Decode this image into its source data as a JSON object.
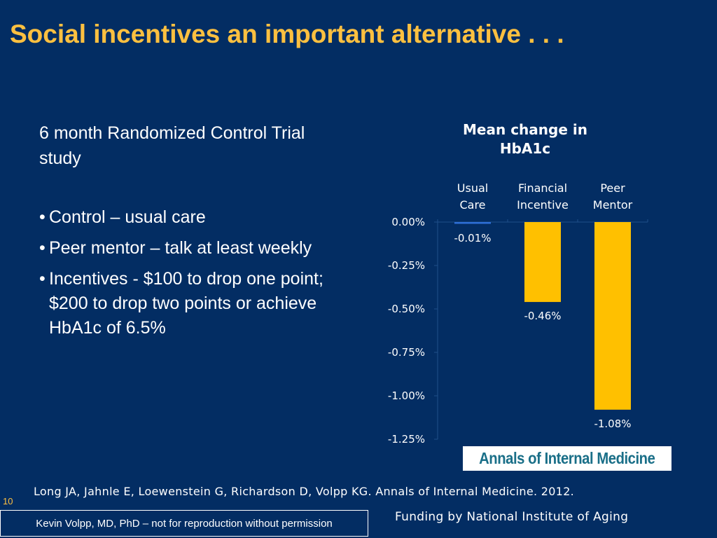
{
  "title": "Social incentives an important alternative . . .",
  "intro": "6 month Randomized Control Trial study",
  "bullets": [
    "Control – usual care",
    "Peer mentor – talk at least weekly",
    "Incentives - $100 to drop one point; $200 to drop two points or achieve HbA1c of 6.5%"
  ],
  "bullet_symbol": "•",
  "chart_data": {
    "type": "bar",
    "title": "Mean change in HbA1c",
    "categories": [
      "Usual Care",
      "Financial Incentive",
      "Peer Mentor"
    ],
    "series": [
      {
        "values": [
          -0.01,
          -0.46,
          -1.08
        ]
      }
    ],
    "value_labels": [
      "-0.01%",
      "-0.46%",
      "-1.08%"
    ],
    "ylim": [
      -1.25,
      0
    ],
    "yticks": [
      0,
      -0.25,
      -0.5,
      -0.75,
      -1.0,
      -1.25
    ],
    "ytick_labels": [
      "0.00%",
      "-0.25%",
      "-0.50%",
      "-0.75%",
      "-1.00%",
      "-1.25%"
    ],
    "category_axis_position": "top",
    "grid": false,
    "bar_colors": [
      "#2e6fd6",
      "#ffc000",
      "#ffc000"
    ]
  },
  "journal_logo": "Annals of Internal Medicine",
  "citation": "Long JA, Jahnle E, Loewenstein G, Richardson D, Volpp KG. Annals of Internal Medicine. 2012.",
  "slide_number": "10",
  "copyright": "Kevin Volpp, MD, PhD – not for reproduction without permission",
  "funding": "Funding by National Institute of Aging"
}
